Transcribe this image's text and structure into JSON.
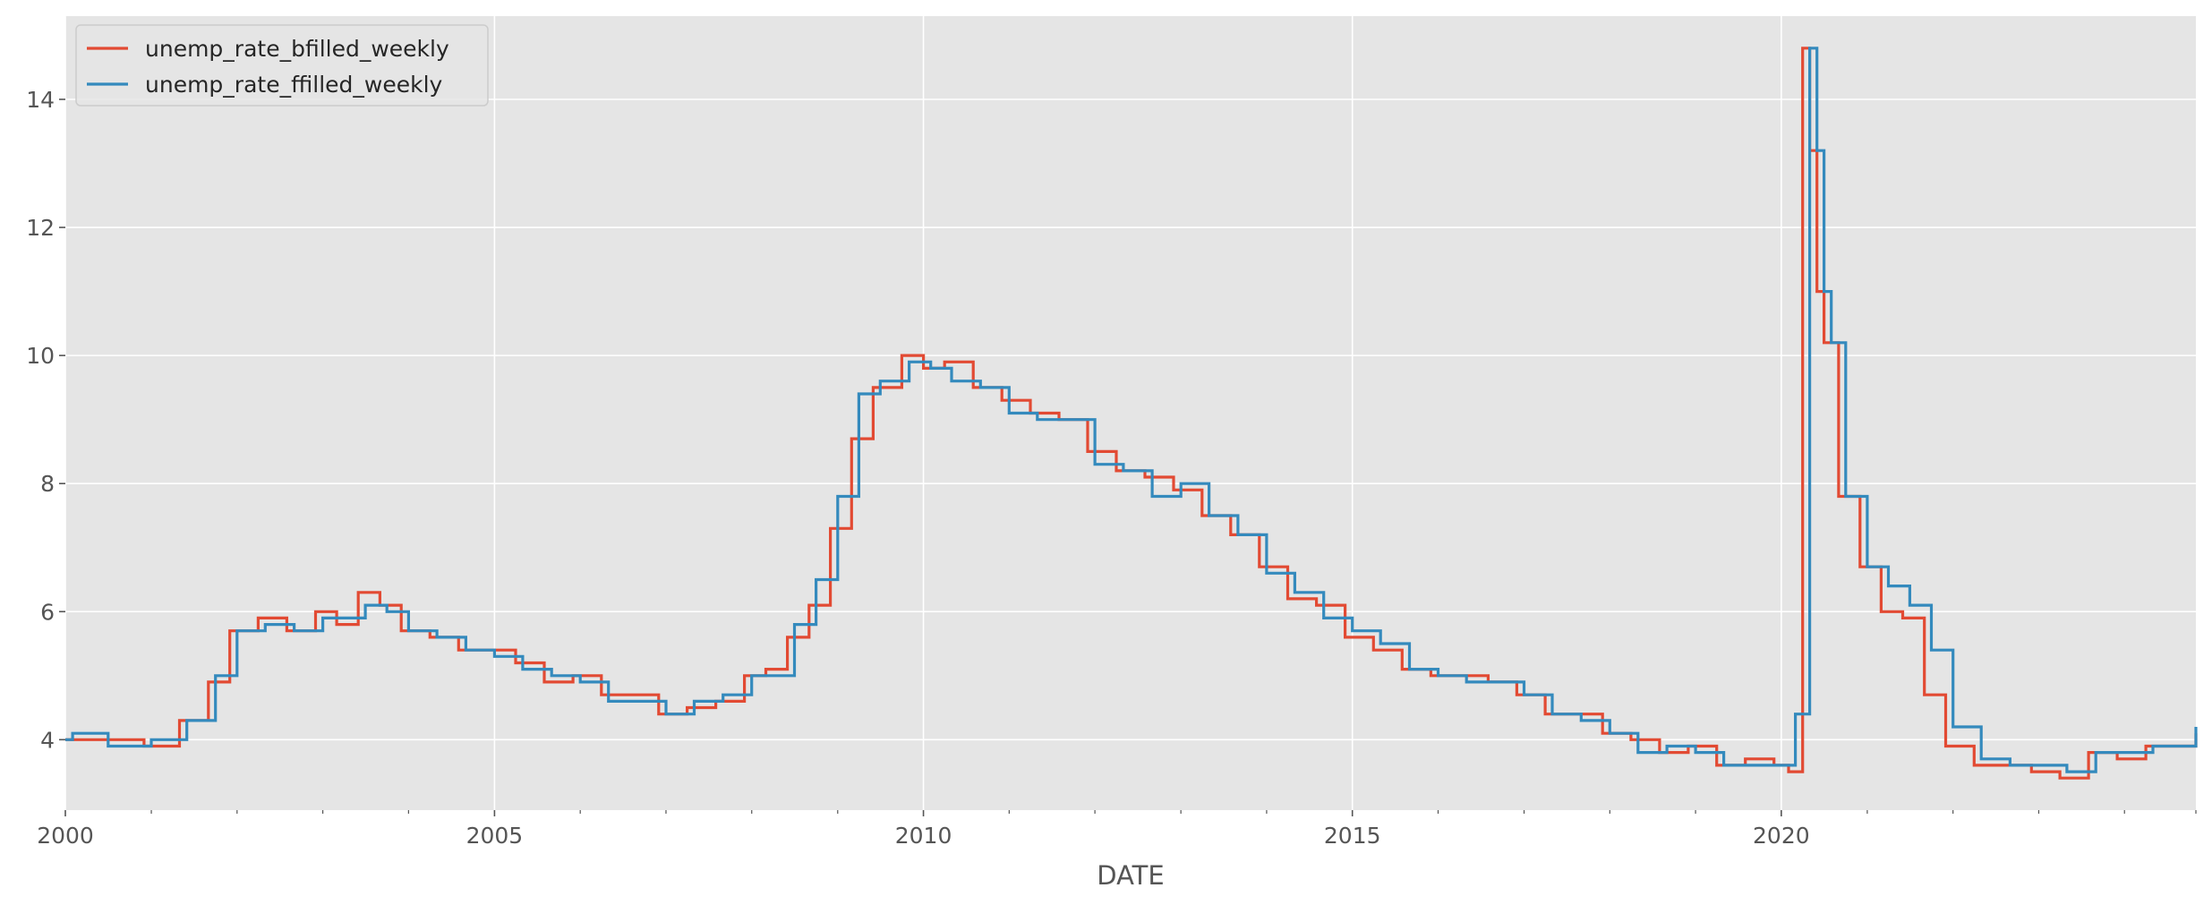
{
  "chart_data": {
    "type": "line",
    "title": "",
    "xlabel": "DATE",
    "ylabel": "",
    "x_axis": "date",
    "xlim": [
      "2000-01-01",
      "2024-10-31"
    ],
    "ylim": [
      2.9,
      15.3
    ],
    "x_ticks": [
      "2000",
      "2005",
      "2010",
      "2015",
      "2020"
    ],
    "x_tick_dates": [
      "2000-01-01",
      "2005-01-01",
      "2010-01-01",
      "2015-01-01",
      "2020-01-01"
    ],
    "y_ticks": [
      4,
      6,
      8,
      10,
      12,
      14
    ],
    "y_tick_labels": [
      "4",
      "6",
      "8",
      "10",
      "12",
      "14"
    ],
    "grid": true,
    "legend_position": "top-left",
    "style": "ggplot",
    "series": [
      {
        "name": "unemp_rate_bfilled_weekly",
        "color": "#E24A33",
        "line_style": "steps-post",
        "x": [
          "2000-01-01",
          "2000-06-01",
          "2000-12-01",
          "2001-05-01",
          "2001-09-01",
          "2001-12-01",
          "2002-04-01",
          "2002-08-01",
          "2002-12-01",
          "2003-03-01",
          "2003-06-01",
          "2003-09-01",
          "2003-12-01",
          "2004-04-01",
          "2004-08-01",
          "2004-12-01",
          "2005-04-01",
          "2005-08-01",
          "2005-12-01",
          "2006-04-01",
          "2006-08-01",
          "2006-12-01",
          "2007-04-01",
          "2007-08-01",
          "2007-12-01",
          "2008-03-01",
          "2008-06-01",
          "2008-09-01",
          "2008-12-01",
          "2009-03-01",
          "2009-06-01",
          "2009-10-01",
          "2010-01-01",
          "2010-04-01",
          "2010-08-01",
          "2010-12-01",
          "2011-04-01",
          "2011-08-01",
          "2011-12-01",
          "2012-04-01",
          "2012-08-01",
          "2012-12-01",
          "2013-04-01",
          "2013-08-01",
          "2013-12-01",
          "2014-04-01",
          "2014-08-01",
          "2014-12-01",
          "2015-04-01",
          "2015-08-01",
          "2015-12-01",
          "2016-04-01",
          "2016-08-01",
          "2016-12-01",
          "2017-04-01",
          "2017-08-01",
          "2017-12-01",
          "2018-04-01",
          "2018-08-01",
          "2018-12-01",
          "2019-04-01",
          "2019-08-01",
          "2019-12-01",
          "2020-02-01",
          "2020-04-01",
          "2020-05-01",
          "2020-06-01",
          "2020-07-01",
          "2020-09-01",
          "2020-12-01",
          "2021-03-01",
          "2021-06-01",
          "2021-09-01",
          "2021-12-01",
          "2022-04-01",
          "2022-08-01",
          "2022-12-01",
          "2023-04-01",
          "2023-08-01",
          "2023-12-01",
          "2024-04-01",
          "2024-10-31"
        ],
        "values": [
          4.0,
          4.0,
          3.9,
          4.3,
          4.9,
          5.7,
          5.9,
          5.7,
          6.0,
          5.8,
          6.3,
          6.1,
          5.7,
          5.6,
          5.4,
          5.4,
          5.2,
          4.9,
          5.0,
          4.7,
          4.7,
          4.4,
          4.5,
          4.6,
          5.0,
          5.1,
          5.6,
          6.1,
          7.3,
          8.7,
          9.5,
          10.0,
          9.8,
          9.9,
          9.5,
          9.3,
          9.1,
          9.0,
          8.5,
          8.2,
          8.1,
          7.9,
          7.5,
          7.2,
          6.7,
          6.2,
          6.1,
          5.6,
          5.4,
          5.1,
          5.0,
          5.0,
          4.9,
          4.7,
          4.4,
          4.4,
          4.1,
          4.0,
          3.8,
          3.9,
          3.6,
          3.7,
          3.6,
          3.5,
          14.8,
          13.2,
          11.0,
          10.2,
          7.8,
          6.7,
          6.0,
          5.9,
          4.7,
          3.9,
          3.6,
          3.6,
          3.5,
          3.4,
          3.8,
          3.7,
          3.9,
          4.1
        ]
      },
      {
        "name": "unemp_rate_ffilled_weekly",
        "color": "#348ABD",
        "line_style": "steps-post",
        "x": [
          "2000-01-01",
          "2000-02-01",
          "2000-07-01",
          "2001-01-01",
          "2001-06-01",
          "2001-10-01",
          "2002-01-01",
          "2002-05-01",
          "2002-09-01",
          "2003-01-01",
          "2003-04-01",
          "2003-07-01",
          "2003-10-01",
          "2004-01-01",
          "2004-05-01",
          "2004-09-01",
          "2005-01-01",
          "2005-05-01",
          "2005-09-01",
          "2006-01-01",
          "2006-05-01",
          "2006-09-01",
          "2007-01-01",
          "2007-05-01",
          "2007-09-01",
          "2008-01-01",
          "2008-04-01",
          "2008-07-01",
          "2008-10-01",
          "2009-01-01",
          "2009-04-01",
          "2009-07-01",
          "2009-11-01",
          "2010-02-01",
          "2010-05-01",
          "2010-09-01",
          "2011-01-01",
          "2011-05-01",
          "2011-09-01",
          "2012-01-01",
          "2012-05-01",
          "2012-09-01",
          "2013-01-01",
          "2013-05-01",
          "2013-09-01",
          "2014-01-01",
          "2014-05-01",
          "2014-09-01",
          "2015-01-01",
          "2015-05-01",
          "2015-09-01",
          "2016-01-01",
          "2016-05-01",
          "2016-09-01",
          "2017-01-01",
          "2017-05-01",
          "2017-09-01",
          "2018-01-01",
          "2018-05-01",
          "2018-09-01",
          "2019-01-01",
          "2019-05-01",
          "2019-09-01",
          "2020-01-01",
          "2020-03-01",
          "2020-05-01",
          "2020-06-01",
          "2020-07-01",
          "2020-08-01",
          "2020-10-01",
          "2021-01-01",
          "2021-04-01",
          "2021-07-01",
          "2021-10-01",
          "2022-01-01",
          "2022-05-01",
          "2022-09-01",
          "2023-01-01",
          "2023-05-01",
          "2023-09-01",
          "2024-01-01",
          "2024-05-01",
          "2024-10-31"
        ],
        "values": [
          4.0,
          4.1,
          3.9,
          4.0,
          4.3,
          5.0,
          5.7,
          5.8,
          5.7,
          5.9,
          5.9,
          6.1,
          6.0,
          5.7,
          5.6,
          5.4,
          5.3,
          5.1,
          5.0,
          4.9,
          4.6,
          4.6,
          4.4,
          4.6,
          4.7,
          5.0,
          5.0,
          5.8,
          6.5,
          7.8,
          9.4,
          9.6,
          9.9,
          9.8,
          9.6,
          9.5,
          9.1,
          9.0,
          9.0,
          8.3,
          8.2,
          7.8,
          8.0,
          7.5,
          7.2,
          6.6,
          6.3,
          5.9,
          5.7,
          5.5,
          5.1,
          5.0,
          4.9,
          4.9,
          4.7,
          4.4,
          4.3,
          4.1,
          3.8,
          3.9,
          3.8,
          3.6,
          3.6,
          3.6,
          4.4,
          14.8,
          13.2,
          11.0,
          10.2,
          7.8,
          6.7,
          6.4,
          6.1,
          5.4,
          4.2,
          3.7,
          3.6,
          3.6,
          3.5,
          3.8,
          3.8,
          3.9,
          4.2
        ]
      }
    ]
  }
}
